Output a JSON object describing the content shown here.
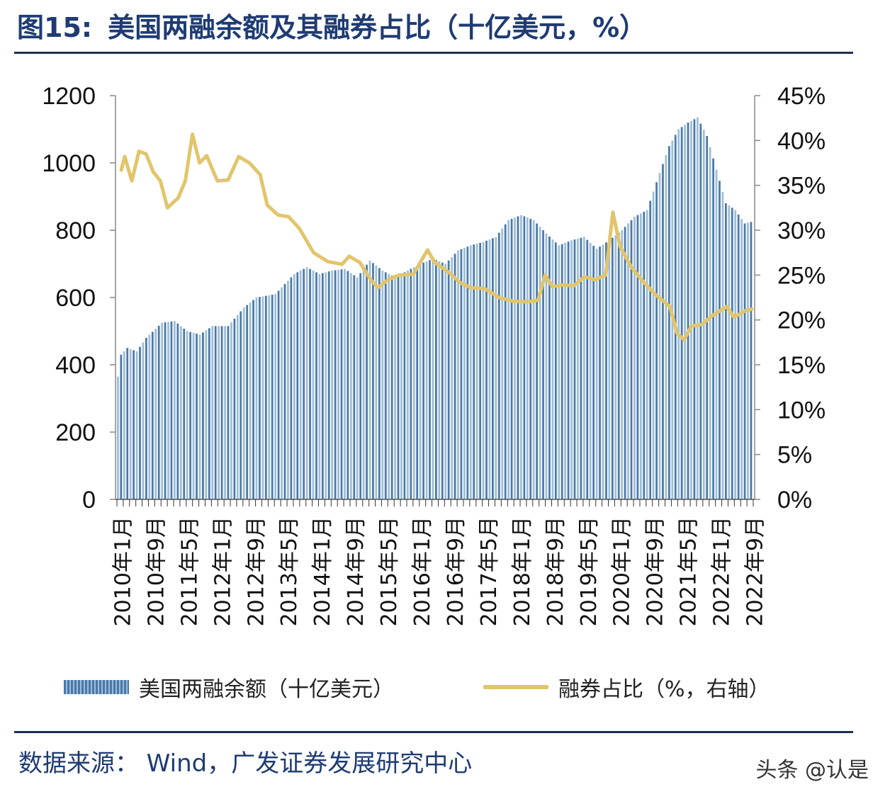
{
  "header": {
    "figure_label": "图15:",
    "title": "美国两融余额及其融券占比（十亿美元，%）"
  },
  "source_text": "数据来源：  Wind，广发证券发展研究中心",
  "watermark_text": "头条 @认是",
  "colors": {
    "bar": "#4a78a8",
    "bar_light": "#9dbdd8",
    "line": "#e2c56b",
    "title": "#1e3b73",
    "axis": "#888888"
  },
  "legend": {
    "bar_label": "美国两融余额（十亿美元）",
    "line_label": "融券占比（%，右轴）"
  },
  "chart_data": {
    "type": "bar",
    "x_tick_labels": [
      "2010年1月",
      "2010年9月",
      "2011年5月",
      "2012年1月",
      "2012年9月",
      "2013年5月",
      "2014年1月",
      "2014年9月",
      "2015年5月",
      "2016年1月",
      "2016年9月",
      "2017年5月",
      "2018年1月",
      "2018年9月",
      "2019年5月",
      "2020年1月",
      "2020年9月",
      "2021年5月",
      "2022年1月",
      "2022年9月"
    ],
    "y_left": {
      "ticks": [
        0,
        200,
        400,
        600,
        800,
        1000,
        1200
      ],
      "ylim": [
        0,
        1200
      ]
    },
    "y_right": {
      "ticks": [
        "0%",
        "5%",
        "10%",
        "15%",
        "20%",
        "25%",
        "30%",
        "35%",
        "40%",
        "45%"
      ],
      "ylim": [
        0,
        45
      ]
    },
    "series": [
      {
        "name": "美国两融余额（十亿美元）",
        "type": "bar",
        "axis": "left",
        "anchors": [
          [
            0,
            365
          ],
          [
            1,
            430
          ],
          [
            3,
            450
          ],
          [
            6,
            440
          ],
          [
            9,
            480
          ],
          [
            14,
            525
          ],
          [
            18,
            530
          ],
          [
            22,
            500
          ],
          [
            26,
            490
          ],
          [
            30,
            515
          ],
          [
            35,
            515
          ],
          [
            40,
            570
          ],
          [
            44,
            600
          ],
          [
            50,
            610
          ],
          [
            56,
            670
          ],
          [
            60,
            690
          ],
          [
            64,
            670
          ],
          [
            68,
            680
          ],
          [
            72,
            685
          ],
          [
            76,
            660
          ],
          [
            80,
            710
          ],
          [
            84,
            680
          ],
          [
            88,
            660
          ],
          [
            92,
            680
          ],
          [
            96,
            700
          ],
          [
            100,
            715
          ],
          [
            104,
            700
          ],
          [
            108,
            740
          ],
          [
            112,
            755
          ],
          [
            116,
            765
          ],
          [
            120,
            780
          ],
          [
            124,
            830
          ],
          [
            128,
            845
          ],
          [
            132,
            830
          ],
          [
            136,
            790
          ],
          [
            140,
            755
          ],
          [
            144,
            770
          ],
          [
            148,
            780
          ],
          [
            152,
            745
          ],
          [
            156,
            770
          ],
          [
            160,
            800
          ],
          [
            164,
            840
          ],
          [
            168,
            860
          ],
          [
            172,
            970
          ],
          [
            175,
            1050
          ],
          [
            178,
            1100
          ],
          [
            181,
            1120
          ],
          [
            184,
            1135
          ],
          [
            187,
            1080
          ],
          [
            190,
            980
          ],
          [
            193,
            880
          ],
          [
            196,
            860
          ],
          [
            199,
            820
          ]
        ],
        "count": 202
      },
      {
        "name": "融券占比（%，右轴）",
        "type": "line",
        "axis": "right",
        "anchors": [
          [
            0,
            36.7
          ],
          [
            1,
            38.2
          ],
          [
            3,
            35.5
          ],
          [
            5,
            38.8
          ],
          [
            7,
            38.5
          ],
          [
            9,
            36.5
          ],
          [
            11,
            35.5
          ],
          [
            13,
            32.5
          ],
          [
            16,
            33.6
          ],
          [
            18,
            35.5
          ],
          [
            20,
            40.7
          ],
          [
            22,
            37.5
          ],
          [
            24,
            38.3
          ],
          [
            27,
            35.5
          ],
          [
            30,
            35.6
          ],
          [
            33,
            38.2
          ],
          [
            36,
            37.5
          ],
          [
            39,
            36.2
          ],
          [
            41,
            32.8
          ],
          [
            44,
            31.7
          ],
          [
            47,
            31.5
          ],
          [
            50,
            30.2
          ],
          [
            54,
            27.5
          ],
          [
            58,
            26.5
          ],
          [
            62,
            26.2
          ],
          [
            64,
            27.1
          ],
          [
            67,
            26.4
          ],
          [
            70,
            24.5
          ],
          [
            72,
            23.6
          ],
          [
            75,
            24.5
          ],
          [
            78,
            25.0
          ],
          [
            82,
            25.1
          ],
          [
            86,
            27.8
          ],
          [
            88,
            26.4
          ],
          [
            92,
            25.3
          ],
          [
            95,
            24.2
          ],
          [
            98,
            23.6
          ],
          [
            102,
            23.5
          ],
          [
            106,
            22.5
          ],
          [
            110,
            22.1
          ],
          [
            114,
            22.0
          ],
          [
            117,
            22.2
          ],
          [
            119,
            25.0
          ],
          [
            121,
            23.7
          ],
          [
            124,
            23.9
          ],
          [
            127,
            23.8
          ],
          [
            130,
            24.8
          ],
          [
            133,
            24.5
          ],
          [
            136,
            25.0
          ],
          [
            138,
            32.0
          ],
          [
            140,
            28.2
          ],
          [
            143,
            26.0
          ],
          [
            146,
            24.5
          ],
          [
            150,
            22.8
          ],
          [
            154,
            21.5
          ],
          [
            156,
            18.5
          ],
          [
            158,
            17.8
          ],
          [
            160,
            19.3
          ],
          [
            163,
            19.5
          ],
          [
            166,
            20.5
          ],
          [
            168,
            21.0
          ],
          [
            170,
            21.5
          ],
          [
            172,
            20.3
          ],
          [
            175,
            21.0
          ],
          [
            177,
            21.2
          ]
        ],
        "count": 178
      }
    ],
    "grid": false,
    "legend_position": "bottom"
  }
}
